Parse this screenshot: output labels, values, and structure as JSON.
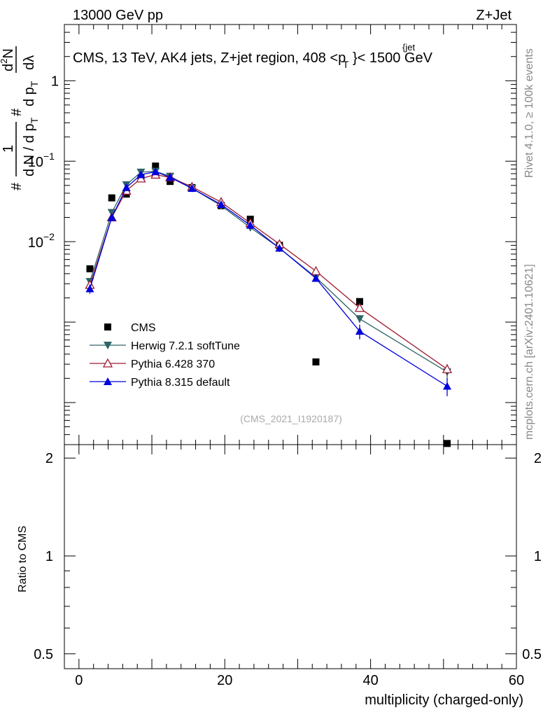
{
  "header": {
    "left": "13000 GeV pp",
    "right": "Z+Jet"
  },
  "side": {
    "rivet": "Rivet 4.1.0, ≥ 100k events",
    "mcplots": "mcplots.cern.ch [arXiv:2401.10621]"
  },
  "watermark": "(CMS_2021_I1920187)",
  "ratio_ylabel": "Ratio to CMS",
  "chart_data": {
    "type": "line",
    "title": "CMS, 13 TeV, AK4 jets, Z+jet region, 408 <p_T^{jet}< 1500 GeV",
    "title_parts": {
      "before": "CMS, 13 TeV, AK4 jets, Z+jet region, 408 <p",
      "sup": "{jet",
      "sub": "T",
      "after": "}< 1500 GeV"
    },
    "xlabel": "multiplicity (charged-only)",
    "ylabel_parts": [
      "#",
      "1",
      "d N / d p",
      "T",
      "#",
      "d p",
      "T",
      "d",
      "2",
      "N",
      "dλ"
    ],
    "xlim": [
      -2,
      60
    ],
    "ylim_log": [
      3e-05,
      5
    ],
    "xticks": [
      0,
      20,
      40,
      60
    ],
    "yticks": [
      {
        "value": 0.01,
        "base": "10",
        "exp": "−2"
      },
      {
        "value": 0.1,
        "base": "10",
        "exp": "−1"
      },
      {
        "value": 1,
        "label": "1"
      }
    ],
    "ratio": {
      "ylim_log": [
        0.45,
        2.2
      ],
      "ticks": [
        {
          "value": 2,
          "label": "2"
        },
        {
          "value": 1,
          "label": "1"
        },
        {
          "value": 0.5,
          "label": "0.5"
        }
      ]
    },
    "series": [
      {
        "name": "CMS",
        "color": "#000000",
        "marker": "square",
        "points": [
          {
            "x": 1.5,
            "y": 0.0046
          },
          {
            "x": 4.5,
            "y": 0.035
          },
          {
            "x": 6.5,
            "y": 0.039
          },
          {
            "x": 8.5,
            "y": 0.062
          },
          {
            "x": 10.5,
            "y": 0.087
          },
          {
            "x": 12.5,
            "y": 0.056
          },
          {
            "x": 15.5,
            "y": 0.047
          },
          {
            "x": 19.5,
            "y": 0.028
          },
          {
            "x": 23.5,
            "y": 0.019
          },
          {
            "x": 27.5,
            "y": 0.009
          },
          {
            "x": 32.5,
            "y": 0.00032
          },
          {
            "x": 38.5,
            "y": 0.0018
          },
          {
            "x": 50.5,
            "y": 3.1e-05
          }
        ]
      },
      {
        "name": "Herwig 7.2.1 softTune",
        "color": "#2e6467",
        "marker": "tri-down",
        "points": [
          {
            "x": 1.5,
            "y": 0.0032,
            "err": 0.0002
          },
          {
            "x": 4.5,
            "y": 0.023
          },
          {
            "x": 6.5,
            "y": 0.051
          },
          {
            "x": 8.5,
            "y": 0.073
          },
          {
            "x": 10.5,
            "y": 0.075
          },
          {
            "x": 12.5,
            "y": 0.065
          },
          {
            "x": 15.5,
            "y": 0.046
          },
          {
            "x": 19.5,
            "y": 0.028
          },
          {
            "x": 23.5,
            "y": 0.015
          },
          {
            "x": 27.5,
            "y": 0.0083
          },
          {
            "x": 32.5,
            "y": 0.0036
          },
          {
            "x": 38.5,
            "y": 0.0011,
            "err": 0.00012
          },
          {
            "x": 50.5,
            "y": 0.00024,
            "err": 5e-05
          }
        ]
      },
      {
        "name": "Pythia 6.428 370",
        "color": "#9b1b30",
        "marker": "tri-up-open",
        "points": [
          {
            "x": 1.5,
            "y": 0.0029,
            "err": 0.0002
          },
          {
            "x": 4.5,
            "y": 0.02
          },
          {
            "x": 6.5,
            "y": 0.043
          },
          {
            "x": 8.5,
            "y": 0.061
          },
          {
            "x": 10.5,
            "y": 0.068
          },
          {
            "x": 12.5,
            "y": 0.063
          },
          {
            "x": 15.5,
            "y": 0.048
          },
          {
            "x": 19.5,
            "y": 0.031
          },
          {
            "x": 23.5,
            "y": 0.017
          },
          {
            "x": 27.5,
            "y": 0.0093
          },
          {
            "x": 32.5,
            "y": 0.0043
          },
          {
            "x": 38.5,
            "y": 0.0015,
            "err": 0.00012
          },
          {
            "x": 50.5,
            "y": 0.00026,
            "err": 4e-05
          }
        ]
      },
      {
        "name": "Pythia 8.315 default",
        "color": "#0000dd",
        "marker": "tri-up",
        "points": [
          {
            "x": 1.5,
            "y": 0.0026,
            "err": 0.00035
          },
          {
            "x": 4.5,
            "y": 0.02
          },
          {
            "x": 6.5,
            "y": 0.047
          },
          {
            "x": 8.5,
            "y": 0.068
          },
          {
            "x": 10.5,
            "y": 0.074
          },
          {
            "x": 12.5,
            "y": 0.063
          },
          {
            "x": 15.5,
            "y": 0.046
          },
          {
            "x": 19.5,
            "y": 0.029
          },
          {
            "x": 23.5,
            "y": 0.016
          },
          {
            "x": 27.5,
            "y": 0.0083
          },
          {
            "x": 32.5,
            "y": 0.0035
          },
          {
            "x": 38.5,
            "y": 0.00077,
            "err": 0.00016
          },
          {
            "x": 50.5,
            "y": 0.00016,
            "err": 4e-05
          }
        ]
      }
    ]
  }
}
